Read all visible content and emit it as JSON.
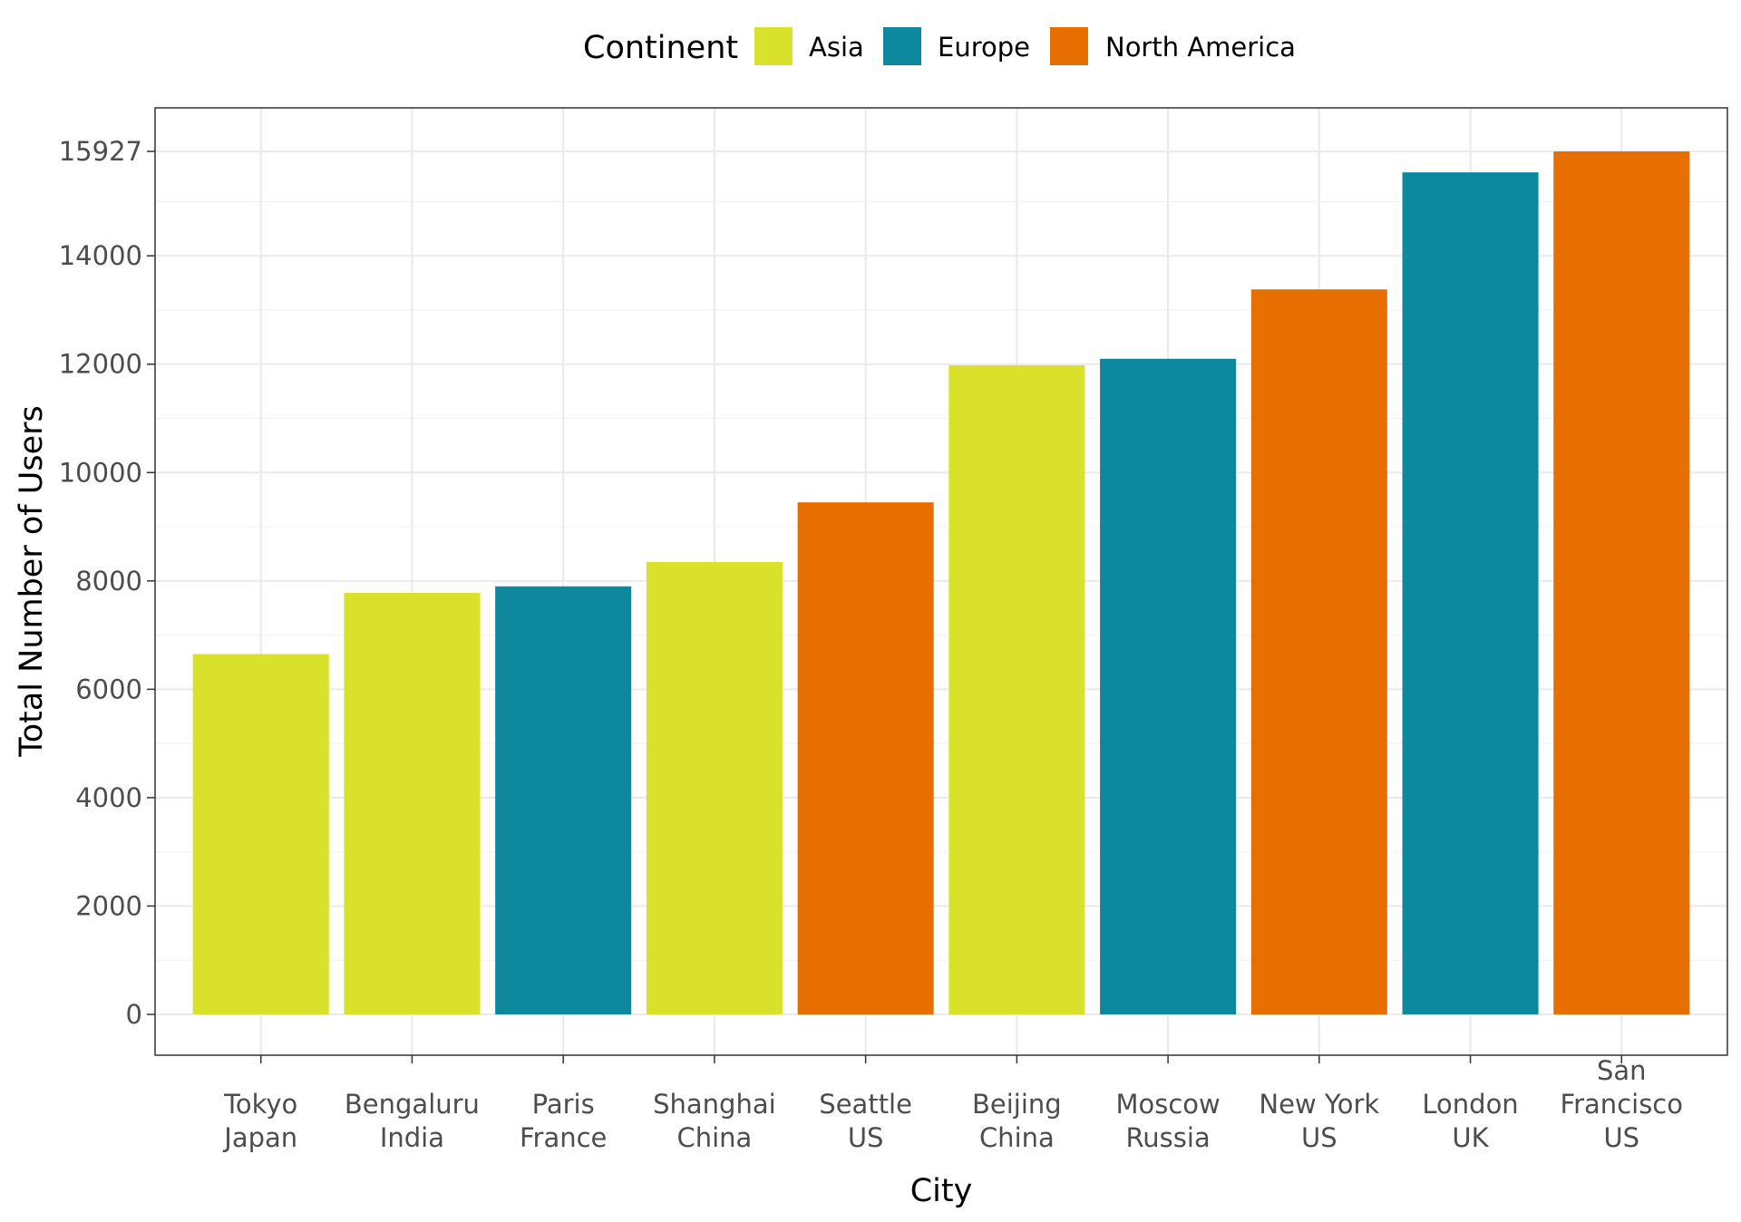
{
  "chart_data": {
    "type": "bar",
    "title": "",
    "xlabel": "City",
    "ylabel": "Total Number of Users",
    "ylim": [
      -800,
      16760
    ],
    "yticks": [
      0,
      2000,
      4000,
      6000,
      8000,
      10000,
      12000,
      14000,
      15927
    ],
    "ytick_labels": [
      "0",
      "2000",
      "4000",
      "6000",
      "8000",
      "10000",
      "12000",
      "14000",
      "15927"
    ],
    "grid": true,
    "legend": {
      "title": "Continent",
      "position": "top",
      "entries": [
        {
          "label": "Asia",
          "color": "#d9e12b"
        },
        {
          "label": "Europe",
          "color": "#0e889d"
        },
        {
          "label": "North America",
          "color": "#e66f00"
        }
      ]
    },
    "categories": [
      [
        "Tokyo",
        "Japan"
      ],
      [
        "Bengaluru",
        "India"
      ],
      [
        "Paris",
        "France"
      ],
      [
        "Shanghai",
        "China"
      ],
      [
        "Seattle",
        "US"
      ],
      [
        "Beijing",
        "China"
      ],
      [
        "Moscow",
        "Russia"
      ],
      [
        "New York",
        "US"
      ],
      [
        "London",
        "UK"
      ],
      [
        "San",
        "Francisco",
        "US"
      ]
    ],
    "continents": [
      "Asia",
      "Asia",
      "Europe",
      "Asia",
      "North America",
      "Asia",
      "Europe",
      "North America",
      "Europe",
      "North America"
    ],
    "values": [
      6650,
      7780,
      7900,
      8350,
      9450,
      11980,
      12100,
      13380,
      15540,
      15927
    ]
  }
}
